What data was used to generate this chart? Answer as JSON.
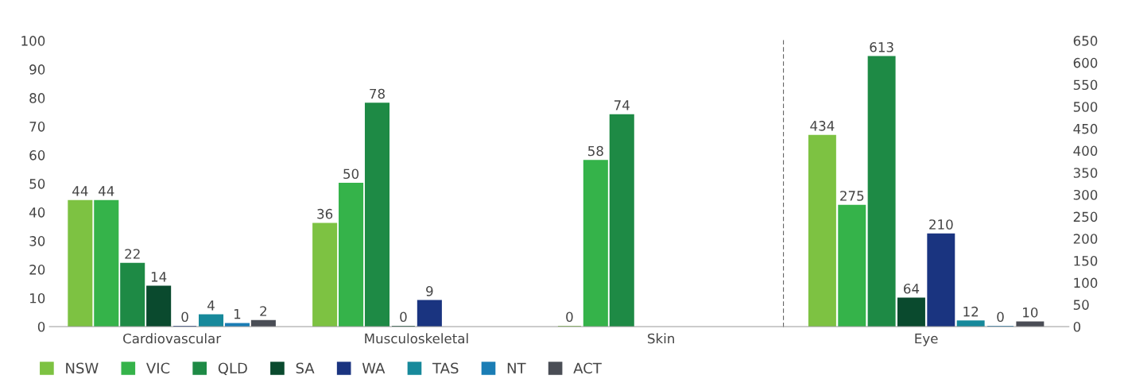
{
  "chart_data": [
    {
      "type": "bar",
      "categories": [
        "Cardiovascular",
        "Musculoskeletal",
        "Skin"
      ],
      "ylim": [
        0,
        100
      ],
      "yticks": [
        0,
        10,
        20,
        30,
        40,
        50,
        60,
        70,
        80,
        90,
        100
      ],
      "data_labels": true,
      "legend": "bottom",
      "grid": false,
      "series": [
        {
          "name": "NSW",
          "color": "#7dc242",
          "values": [
            44,
            36,
            0
          ]
        },
        {
          "name": "VIC",
          "color": "#35b34a",
          "values": [
            44,
            50,
            58
          ]
        },
        {
          "name": "QLD",
          "color": "#1e8a45",
          "values": [
            22,
            78,
            74
          ]
        },
        {
          "name": "SA",
          "color": "#0a4a2e",
          "values": [
            14,
            0,
            null
          ]
        },
        {
          "name": "WA",
          "color": "#1a3480",
          "values": [
            0,
            9,
            null
          ]
        },
        {
          "name": "TAS",
          "color": "#17899b",
          "values": [
            4,
            null,
            null
          ]
        },
        {
          "name": "NT",
          "color": "#1a7db5",
          "values": [
            1,
            null,
            null
          ]
        },
        {
          "name": "ACT",
          "color": "#4a4d55",
          "values": [
            2,
            null,
            null
          ]
        }
      ]
    },
    {
      "type": "bar",
      "categories": [
        "Eye"
      ],
      "ylim": [
        0,
        650
      ],
      "yticks": [
        0,
        50,
        100,
        150,
        200,
        250,
        300,
        350,
        400,
        450,
        500,
        550,
        600,
        650
      ],
      "data_labels": true,
      "grid": false,
      "series": [
        {
          "color": "#7dc242",
          "values": [
            434
          ]
        },
        {
          "color": "#35b34a",
          "values": [
            275
          ]
        },
        {
          "color": "#1e8a45",
          "values": [
            613
          ]
        },
        {
          "color": "#0a4a2e",
          "values": [
            64
          ]
        },
        {
          "color": "#1a3480",
          "values": [
            210
          ]
        },
        {
          "color": "#17899b",
          "values": [
            12
          ]
        },
        {
          "color": "#1a7db5",
          "values": [
            0
          ]
        },
        {
          "color": "#4a4d55",
          "values": [
            10
          ]
        }
      ]
    }
  ]
}
